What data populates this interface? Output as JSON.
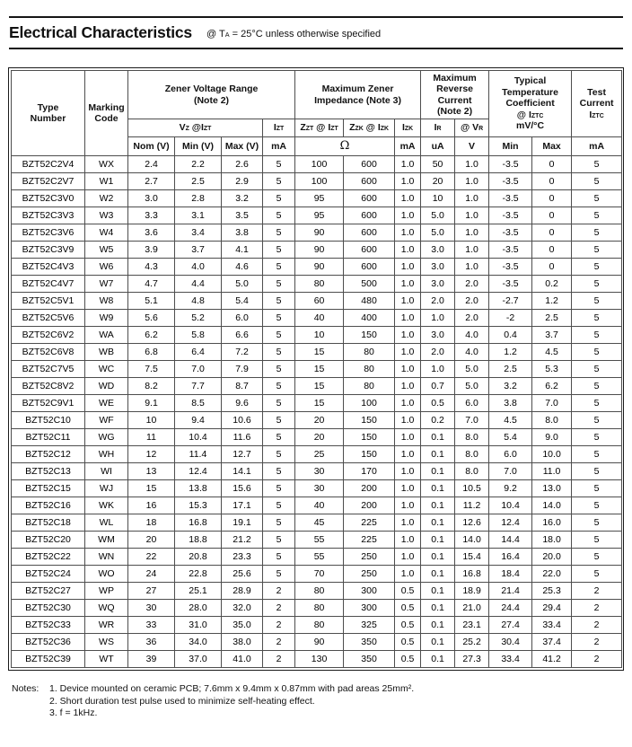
{
  "page": {
    "title": "Electrical Characteristics",
    "subtitle": {
      "p1": "@ T",
      "s1": "A",
      "p2": " = 25°C unless otherwise specified"
    }
  },
  "table": {
    "header": {
      "type_number": {
        "l1": "Type",
        "l2": "Number"
      },
      "marking_code": {
        "l1": "Marking",
        "l2": "Code"
      },
      "zener_voltage_range": {
        "l1": "Zener Voltage Range",
        "l2": "(Note 2)"
      },
      "max_zener_impedance": {
        "l1": "Maximum Zener",
        "l2": "Impedance (Note 3)"
      },
      "max_reverse_current": {
        "l1": "Maximum",
        "l2": "Reverse",
        "l3": "Current",
        "l4": "(Note 2)"
      },
      "typ_temp_coefficient": {
        "l1": "Typical",
        "l2": "Temperature",
        "l3": "Coefficient",
        "l4p": "@ I",
        "l4s": "ZTC",
        "l5": "mV/°C"
      },
      "test_current": {
        "l1": "Test",
        "l2": "Current",
        "l3p": "I",
        "l3s": "ZTC"
      },
      "vz_at_izt": {
        "p1": "V",
        "s1": "Z",
        "p2": " @I",
        "s2": "ZT"
      },
      "izt": {
        "p1": "I",
        "s1": "ZT"
      },
      "zzt_at_izt": {
        "p1": "Z",
        "s1": "ZT",
        "p2": " @ I",
        "s2": "ZT"
      },
      "zzk_at_izk": {
        "p1": "Z",
        "s1": "ZK",
        "p2": " @ I",
        "s2": "ZK"
      },
      "izk": {
        "p1": "I",
        "s1": "ZK"
      },
      "ir": {
        "p1": "I",
        "s1": "R"
      },
      "at_vr": {
        "p1": "@ V",
        "s1": "R"
      },
      "units": {
        "nom": "Nom (V)",
        "min": "Min (V)",
        "max": "Max (V)",
        "izt_ma": "mA",
        "ohm": "Ω",
        "izk_ma": "mA",
        "ir_ua": "uA",
        "vr_v": "V",
        "tc_min": "Min",
        "tc_max": "Max",
        "test_ma": "mA"
      }
    },
    "field_names": [
      "type-number",
      "marking-code",
      "vz-nom",
      "vz-min",
      "vz-max",
      "izt",
      "zzt",
      "zzk",
      "izk",
      "ir",
      "vr",
      "tc-min",
      "tc-max",
      "iztc"
    ],
    "rows": [
      [
        "BZT52C2V4",
        "WX",
        "2.4",
        "2.2",
        "2.6",
        "5",
        "100",
        "600",
        "1.0",
        "50",
        "1.0",
        "-3.5",
        "0",
        "5"
      ],
      [
        "BZT52C2V7",
        "W1",
        "2.7",
        "2.5",
        "2.9",
        "5",
        "100",
        "600",
        "1.0",
        "20",
        "1.0",
        "-3.5",
        "0",
        "5"
      ],
      [
        "BZT52C3V0",
        "W2",
        "3.0",
        "2.8",
        "3.2",
        "5",
        "95",
        "600",
        "1.0",
        "10",
        "1.0",
        "-3.5",
        "0",
        "5"
      ],
      [
        "BZT52C3V3",
        "W3",
        "3.3",
        "3.1",
        "3.5",
        "5",
        "95",
        "600",
        "1.0",
        "5.0",
        "1.0",
        "-3.5",
        "0",
        "5"
      ],
      [
        "BZT52C3V6",
        "W4",
        "3.6",
        "3.4",
        "3.8",
        "5",
        "90",
        "600",
        "1.0",
        "5.0",
        "1.0",
        "-3.5",
        "0",
        "5"
      ],
      [
        "BZT52C3V9",
        "W5",
        "3.9",
        "3.7",
        "4.1",
        "5",
        "90",
        "600",
        "1.0",
        "3.0",
        "1.0",
        "-3.5",
        "0",
        "5"
      ],
      [
        "BZT52C4V3",
        "W6",
        "4.3",
        "4.0",
        "4.6",
        "5",
        "90",
        "600",
        "1.0",
        "3.0",
        "1.0",
        "-3.5",
        "0",
        "5"
      ],
      [
        "BZT52C4V7",
        "W7",
        "4.7",
        "4.4",
        "5.0",
        "5",
        "80",
        "500",
        "1.0",
        "3.0",
        "2.0",
        "-3.5",
        "0.2",
        "5"
      ],
      [
        "BZT52C5V1",
        "W8",
        "5.1",
        "4.8",
        "5.4",
        "5",
        "60",
        "480",
        "1.0",
        "2.0",
        "2.0",
        "-2.7",
        "1.2",
        "5"
      ],
      [
        "BZT52C5V6",
        "W9",
        "5.6",
        "5.2",
        "6.0",
        "5",
        "40",
        "400",
        "1.0",
        "1.0",
        "2.0",
        "-2",
        "2.5",
        "5"
      ],
      [
        "BZT52C6V2",
        "WA",
        "6.2",
        "5.8",
        "6.6",
        "5",
        "10",
        "150",
        "1.0",
        "3.0",
        "4.0",
        "0.4",
        "3.7",
        "5"
      ],
      [
        "BZT52C6V8",
        "WB",
        "6.8",
        "6.4",
        "7.2",
        "5",
        "15",
        "80",
        "1.0",
        "2.0",
        "4.0",
        "1.2",
        "4.5",
        "5"
      ],
      [
        "BZT52C7V5",
        "WC",
        "7.5",
        "7.0",
        "7.9",
        "5",
        "15",
        "80",
        "1.0",
        "1.0",
        "5.0",
        "2.5",
        "5.3",
        "5"
      ],
      [
        "BZT52C8V2",
        "WD",
        "8.2",
        "7.7",
        "8.7",
        "5",
        "15",
        "80",
        "1.0",
        "0.7",
        "5.0",
        "3.2",
        "6.2",
        "5"
      ],
      [
        "BZT52C9V1",
        "WE",
        "9.1",
        "8.5",
        "9.6",
        "5",
        "15",
        "100",
        "1.0",
        "0.5",
        "6.0",
        "3.8",
        "7.0",
        "5"
      ],
      [
        "BZT52C10",
        "WF",
        "10",
        "9.4",
        "10.6",
        "5",
        "20",
        "150",
        "1.0",
        "0.2",
        "7.0",
        "4.5",
        "8.0",
        "5"
      ],
      [
        "BZT52C11",
        "WG",
        "11",
        "10.4",
        "11.6",
        "5",
        "20",
        "150",
        "1.0",
        "0.1",
        "8.0",
        "5.4",
        "9.0",
        "5"
      ],
      [
        "BZT52C12",
        "WH",
        "12",
        "11.4",
        "12.7",
        "5",
        "25",
        "150",
        "1.0",
        "0.1",
        "8.0",
        "6.0",
        "10.0",
        "5"
      ],
      [
        "BZT52C13",
        "WI",
        "13",
        "12.4",
        "14.1",
        "5",
        "30",
        "170",
        "1.0",
        "0.1",
        "8.0",
        "7.0",
        "11.0",
        "5"
      ],
      [
        "BZT52C15",
        "WJ",
        "15",
        "13.8",
        "15.6",
        "5",
        "30",
        "200",
        "1.0",
        "0.1",
        "10.5",
        "9.2",
        "13.0",
        "5"
      ],
      [
        "BZT52C16",
        "WK",
        "16",
        "15.3",
        "17.1",
        "5",
        "40",
        "200",
        "1.0",
        "0.1",
        "11.2",
        "10.4",
        "14.0",
        "5"
      ],
      [
        "BZT52C18",
        "WL",
        "18",
        "16.8",
        "19.1",
        "5",
        "45",
        "225",
        "1.0",
        "0.1",
        "12.6",
        "12.4",
        "16.0",
        "5"
      ],
      [
        "BZT52C20",
        "WM",
        "20",
        "18.8",
        "21.2",
        "5",
        "55",
        "225",
        "1.0",
        "0.1",
        "14.0",
        "14.4",
        "18.0",
        "5"
      ],
      [
        "BZT52C22",
        "WN",
        "22",
        "20.8",
        "23.3",
        "5",
        "55",
        "250",
        "1.0",
        "0.1",
        "15.4",
        "16.4",
        "20.0",
        "5"
      ],
      [
        "BZT52C24",
        "WO",
        "24",
        "22.8",
        "25.6",
        "5",
        "70",
        "250",
        "1.0",
        "0.1",
        "16.8",
        "18.4",
        "22.0",
        "5"
      ],
      [
        "BZT52C27",
        "WP",
        "27",
        "25.1",
        "28.9",
        "2",
        "80",
        "300",
        "0.5",
        "0.1",
        "18.9",
        "21.4",
        "25.3",
        "2"
      ],
      [
        "BZT52C30",
        "WQ",
        "30",
        "28.0",
        "32.0",
        "2",
        "80",
        "300",
        "0.5",
        "0.1",
        "21.0",
        "24.4",
        "29.4",
        "2"
      ],
      [
        "BZT52C33",
        "WR",
        "33",
        "31.0",
        "35.0",
        "2",
        "80",
        "325",
        "0.5",
        "0.1",
        "23.1",
        "27.4",
        "33.4",
        "2"
      ],
      [
        "BZT52C36",
        "WS",
        "36",
        "34.0",
        "38.0",
        "2",
        "90",
        "350",
        "0.5",
        "0.1",
        "25.2",
        "30.4",
        "37.4",
        "2"
      ],
      [
        "BZT52C39",
        "WT",
        "39",
        "37.0",
        "41.0",
        "2",
        "130",
        "350",
        "0.5",
        "0.1",
        "27.3",
        "33.4",
        "41.2",
        "2"
      ]
    ]
  },
  "notes": {
    "label": "Notes:",
    "items": [
      "1. Device mounted on ceramic PCB; 7.6mm x 9.4mm x 0.87mm with pad areas 25mm².",
      "2. Short duration test pulse used to minimize self-heating effect.",
      "3. f = 1kHz."
    ]
  }
}
